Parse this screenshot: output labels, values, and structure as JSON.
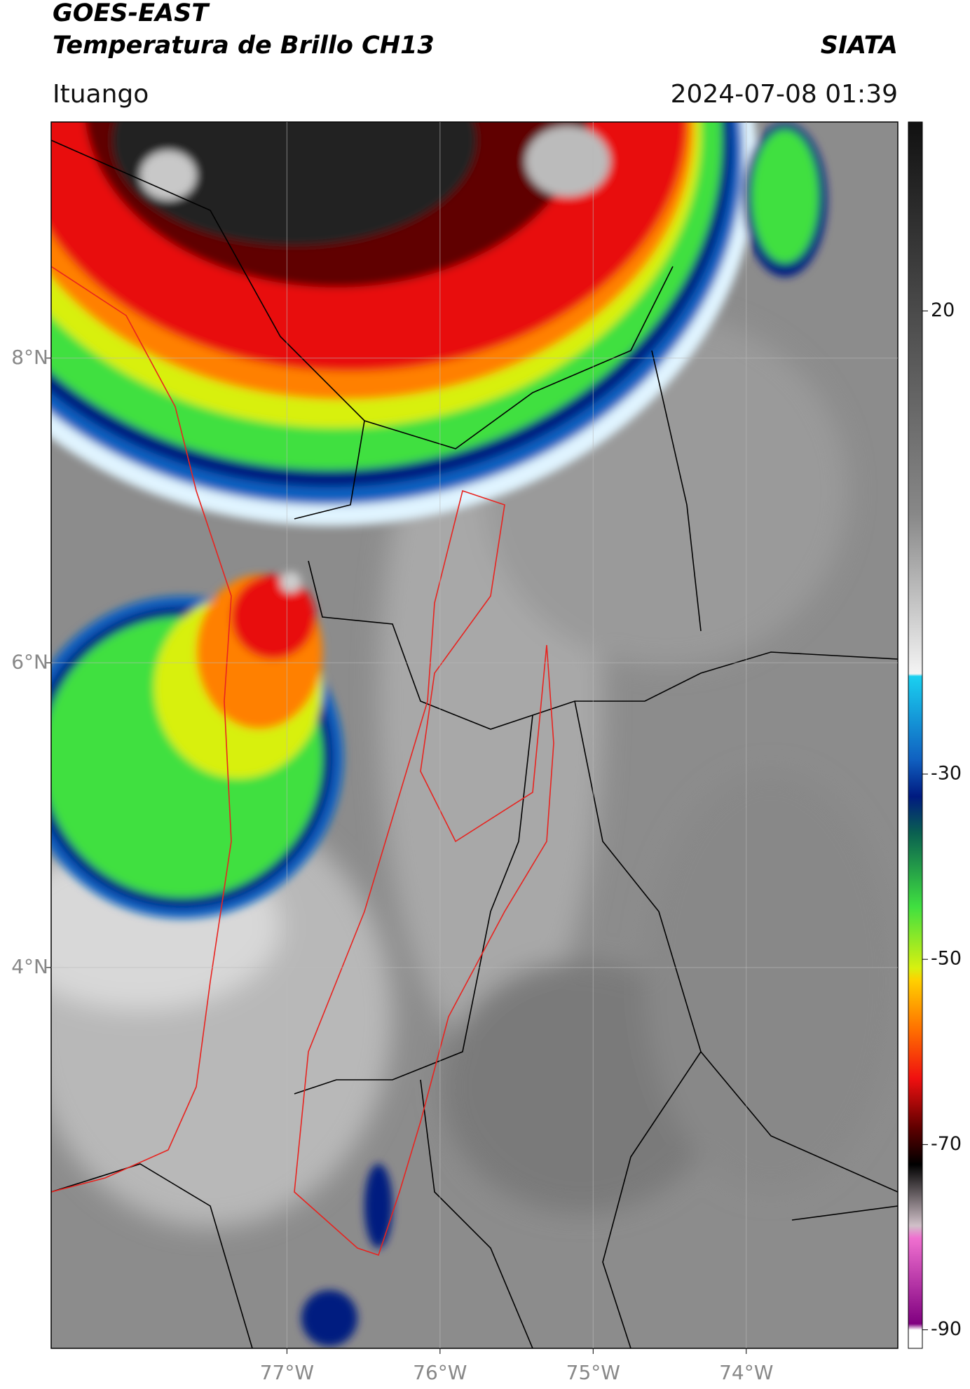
{
  "map": {
    "title": "GOES-EAST",
    "subtitle": "Temperatura de Brillo CH13",
    "credit": "SIATA",
    "place": "Ituango",
    "datetime": "2024-07-08 01:39",
    "xlim": [
      -78.54,
      -73.01
    ],
    "ylim": [
      1.5,
      9.55
    ],
    "xticks": [
      {
        "value": -77,
        "label": "77°W"
      },
      {
        "value": -76,
        "label": "76°W"
      },
      {
        "value": -75,
        "label": "75°W"
      },
      {
        "value": -74,
        "label": "74°W"
      }
    ],
    "yticks": [
      {
        "value": 8,
        "label": "8°N"
      },
      {
        "value": 6,
        "label": "6°N"
      },
      {
        "value": 4,
        "label": "4°N"
      }
    ],
    "grid": true,
    "colorbar": {
      "lim": [
        -92,
        40.4
      ],
      "ticks": [
        20,
        -30,
        -50,
        -70,
        -90
      ]
    }
  }
}
